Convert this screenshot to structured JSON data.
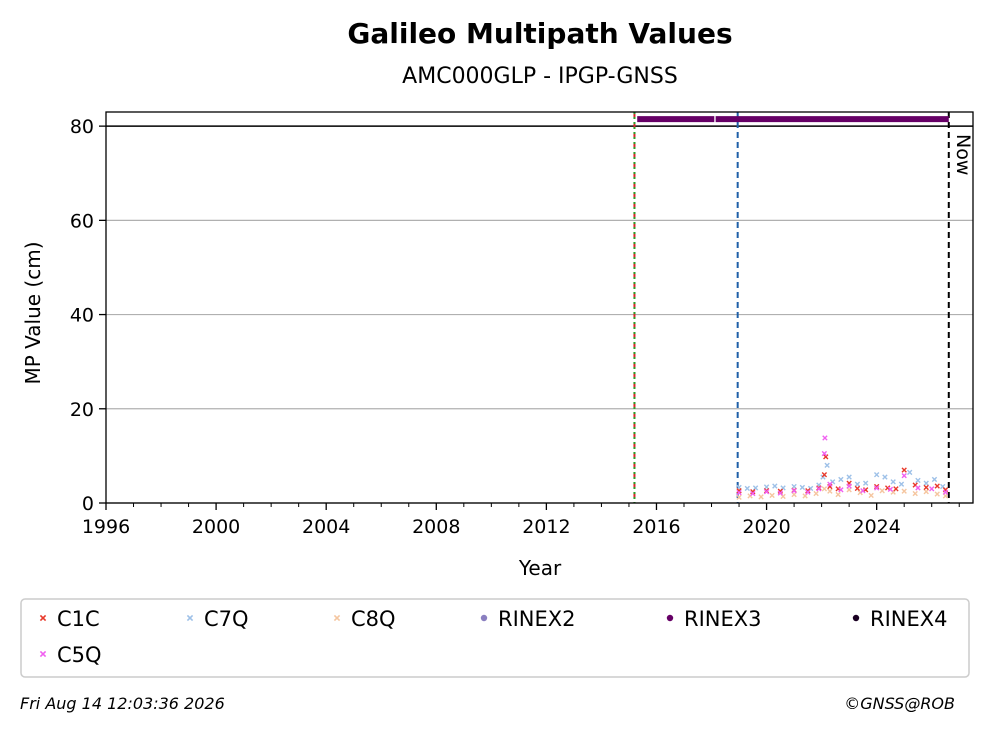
{
  "chart_data": {
    "type": "scatter",
    "title": "Galileo Multipath Values",
    "subtitle": "AMC000GLP - IPGP-GNSS",
    "xlabel": "Year",
    "ylabel": "MP Value (cm)",
    "xlim": [
      1996,
      2027.5
    ],
    "ylim": [
      0,
      83
    ],
    "xticks": [
      1996,
      2000,
      2004,
      2008,
      2012,
      2016,
      2020,
      2024
    ],
    "xtick_labels": [
      "1996",
      "2000",
      "2004",
      "2008",
      "2012",
      "2016",
      "2020",
      "2024"
    ],
    "yticks": [
      0,
      20,
      40,
      60,
      80
    ],
    "ytick_labels": [
      "0",
      "20",
      "40",
      "60",
      "80"
    ],
    "grid": "horizontal",
    "horizontal_line": 80,
    "vertical_lines": [
      {
        "x": 2015.2,
        "color": "#d62728",
        "style": "dashed"
      },
      {
        "x": 2015.2,
        "color": "#2ca02c",
        "style": "dotted"
      },
      {
        "x": 2018.95,
        "color": "#1f5fa8",
        "style": "dashed"
      },
      {
        "x": 2026.62,
        "color": "#000000",
        "style": "dashed",
        "label": "Now"
      }
    ],
    "rinex_bars": [
      {
        "name": "RINEX3",
        "start": 2015.3,
        "end": 2018.1,
        "y": 81.5,
        "color": "#660066"
      },
      {
        "name": "RINEX3",
        "start": 2018.15,
        "end": 2026.62,
        "y": 81.5,
        "color": "#660066"
      }
    ],
    "series": [
      {
        "name": "C1C",
        "color": "#e8392a",
        "marker": "x",
        "x": [
          2019.0,
          2019.5,
          2020.0,
          2020.5,
          2021.0,
          2021.5,
          2021.9,
          2022.1,
          2022.15,
          2022.3,
          2022.6,
          2023.0,
          2023.3,
          2023.6,
          2024.0,
          2024.4,
          2024.7,
          2025.0,
          2025.4,
          2025.8,
          2026.2,
          2026.5
        ],
        "y": [
          2.6,
          2.4,
          2.6,
          2.5,
          2.7,
          2.6,
          3.2,
          6.0,
          9.8,
          3.5,
          3.0,
          4.2,
          3.1,
          2.8,
          3.5,
          3.2,
          3.0,
          7.0,
          3.8,
          3.3,
          3.6,
          2.8
        ]
      },
      {
        "name": "C7Q",
        "color": "#9ec1e8",
        "marker": "x",
        "x": [
          2019.0,
          2019.3,
          2019.6,
          2020.0,
          2020.3,
          2020.6,
          2021.0,
          2021.3,
          2021.6,
          2021.9,
          2022.05,
          2022.2,
          2022.4,
          2022.7,
          2023.0,
          2023.3,
          2023.6,
          2024.0,
          2024.3,
          2024.6,
          2024.9,
          2025.2,
          2025.5,
          2025.8,
          2026.1,
          2026.4
        ],
        "y": [
          3.3,
          3.1,
          3.2,
          3.4,
          3.6,
          3.2,
          3.5,
          3.3,
          3.1,
          3.8,
          5.5,
          8.0,
          4.5,
          5.0,
          5.5,
          4.0,
          4.2,
          6.0,
          5.5,
          4.5,
          4.0,
          6.5,
          4.8,
          4.2,
          5.0,
          3.5
        ]
      },
      {
        "name": "C8Q",
        "color": "#f5c6a0",
        "marker": "x",
        "x": [
          2019.0,
          2019.4,
          2019.8,
          2020.2,
          2020.6,
          2021.0,
          2021.4,
          2021.8,
          2022.1,
          2022.3,
          2022.6,
          2023.0,
          2023.4,
          2023.8,
          2024.2,
          2024.6,
          2025.0,
          2025.4,
          2025.8,
          2026.2,
          2026.5
        ],
        "y": [
          1.2,
          1.5,
          1.3,
          1.6,
          1.4,
          1.8,
          1.5,
          2.0,
          3.0,
          2.5,
          1.8,
          2.8,
          2.2,
          1.6,
          2.6,
          2.3,
          2.5,
          2.0,
          2.4,
          1.9,
          1.5
        ]
      },
      {
        "name": "RINEX2",
        "color": "#8a7fc0",
        "marker": "dot",
        "x": [],
        "y": []
      },
      {
        "name": "RINEX3",
        "color": "#660066",
        "marker": "dot",
        "x": [],
        "y": []
      },
      {
        "name": "RINEX4",
        "color": "#1a0022",
        "marker": "dot",
        "x": [],
        "y": []
      },
      {
        "name": "C5Q",
        "color": "#f060f0",
        "marker": "x",
        "x": [
          2019.0,
          2019.5,
          2020.0,
          2020.5,
          2021.0,
          2021.5,
          2021.9,
          2022.1,
          2022.12,
          2022.3,
          2022.7,
          2023.0,
          2023.5,
          2024.0,
          2024.5,
          2025.0,
          2025.5,
          2026.0,
          2026.5
        ],
        "y": [
          2.2,
          2.0,
          2.4,
          2.1,
          2.6,
          2.3,
          3.0,
          10.5,
          13.8,
          4.0,
          2.8,
          3.6,
          2.6,
          3.2,
          2.9,
          5.8,
          3.2,
          3.0,
          2.3
        ]
      }
    ],
    "legend": {
      "placement": "below",
      "entries": [
        {
          "label": "C1C",
          "color": "#e8392a",
          "marker": "x"
        },
        {
          "label": "C7Q",
          "color": "#9ec1e8",
          "marker": "x"
        },
        {
          "label": "C8Q",
          "color": "#f5c6a0",
          "marker": "x"
        },
        {
          "label": "RINEX2",
          "color": "#8a7fc0",
          "marker": "dot"
        },
        {
          "label": "RINEX3",
          "color": "#660066",
          "marker": "dot"
        },
        {
          "label": "RINEX4",
          "color": "#1a0022",
          "marker": "dot"
        },
        {
          "label": "C5Q",
          "color": "#f060f0",
          "marker": "x"
        }
      ]
    },
    "now_label": "Now"
  },
  "footer": {
    "timestamp": "Fri Aug 14 12:03:36 2026",
    "copyright": "©GNSS@ROB"
  }
}
